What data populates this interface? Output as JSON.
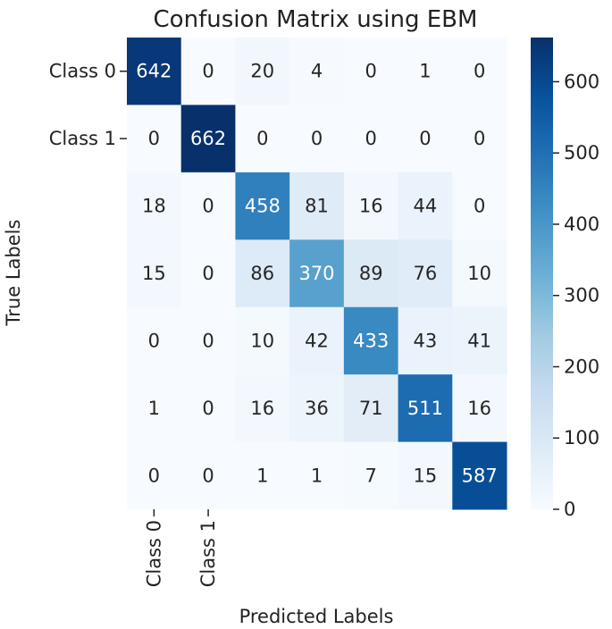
{
  "chart_data": {
    "type": "heatmap",
    "title": "Confusion Matrix using EBM",
    "xlabel": "Predicted Labels",
    "ylabel": "True Labels",
    "x_tick_labels": [
      "Class 0",
      "Class 1",
      "",
      "",
      "",
      "",
      ""
    ],
    "y_tick_labels": [
      "Class 0",
      "Class 1",
      "",
      "",
      "",
      "",
      ""
    ],
    "matrix": [
      [
        642,
        0,
        20,
        4,
        0,
        1,
        0
      ],
      [
        0,
        662,
        0,
        0,
        0,
        0,
        0
      ],
      [
        18,
        0,
        458,
        81,
        16,
        44,
        0
      ],
      [
        15,
        0,
        86,
        370,
        89,
        76,
        10
      ],
      [
        0,
        0,
        10,
        42,
        433,
        43,
        41
      ],
      [
        1,
        0,
        16,
        36,
        71,
        511,
        16
      ],
      [
        0,
        0,
        1,
        1,
        7,
        15,
        587
      ]
    ],
    "colorbar": {
      "colormap": "Blues",
      "min": 0,
      "max": 662,
      "ticks": [
        0,
        100,
        200,
        300,
        400,
        500,
        600
      ]
    }
  }
}
